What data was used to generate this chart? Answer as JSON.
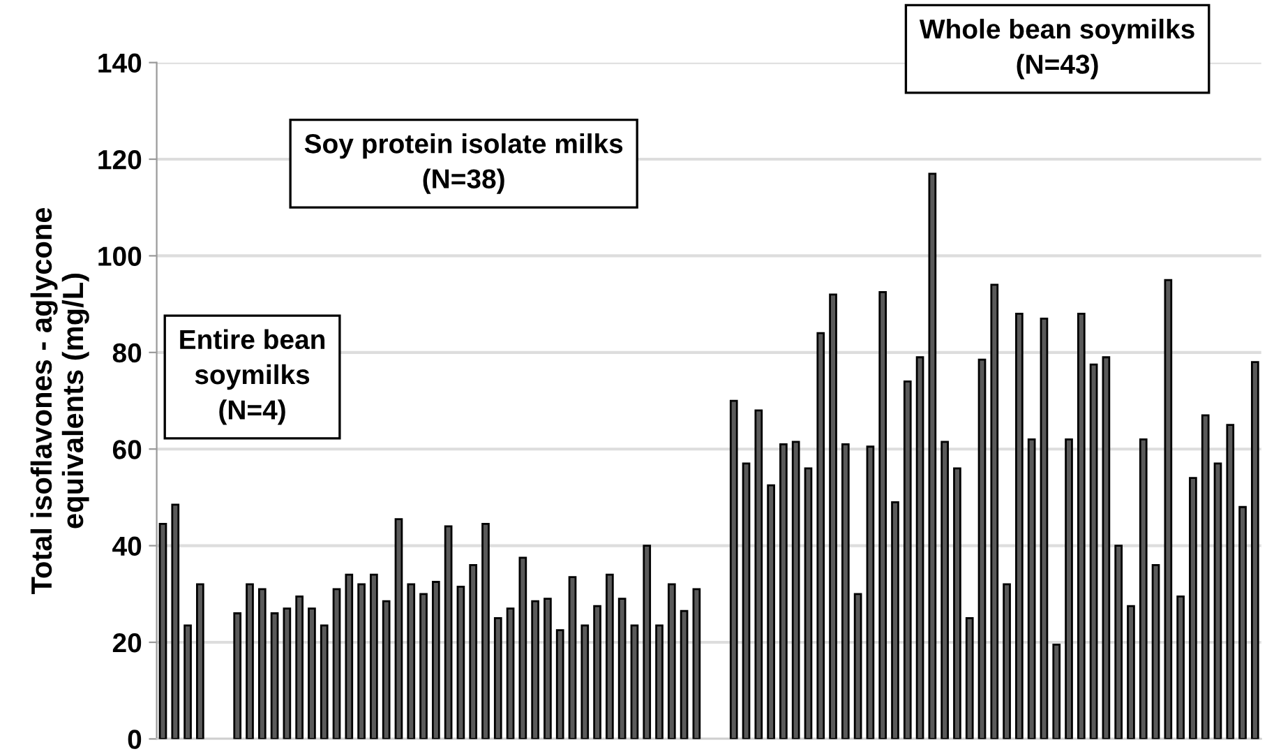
{
  "chart_data": {
    "type": "bar",
    "ylabel": "Total isoflavones - aglycone\nequivalents (mg/L)",
    "categories": [
      null,
      null,
      null,
      null,
      null,
      null,
      null,
      null,
      null,
      null,
      null,
      null,
      null,
      null,
      null,
      null,
      null,
      null,
      null,
      null,
      null,
      null,
      null,
      null,
      null,
      null,
      null,
      null,
      null,
      null,
      null,
      null,
      null,
      null,
      null,
      null,
      null,
      null,
      null,
      null,
      null,
      null,
      null,
      null,
      null,
      null,
      null,
      null,
      null,
      null,
      null,
      null,
      null,
      null,
      null,
      null,
      null,
      null,
      null,
      null,
      null,
      null,
      null,
      null,
      null,
      null,
      null,
      null,
      null,
      null,
      null,
      null,
      null,
      null,
      null,
      null,
      null,
      null,
      null,
      null,
      null,
      null,
      null,
      null,
      null,
      null,
      null,
      null,
      null
    ],
    "values": [
      44.5,
      48.5,
      23.5,
      32,
      null,
      null,
      26,
      32,
      31,
      26,
      27,
      29.5,
      27,
      23.5,
      31,
      34,
      32,
      34,
      28.5,
      45.5,
      32,
      30,
      32.5,
      44,
      31.5,
      36,
      44.5,
      25,
      27,
      37.5,
      28.5,
      29,
      22.5,
      33.5,
      23.5,
      27.5,
      34,
      29,
      23.5,
      40,
      23.5,
      32,
      26.5,
      31,
      null,
      null,
      70,
      57,
      68,
      52.5,
      61,
      61.5,
      56,
      84,
      92,
      61,
      30,
      60.5,
      92.5,
      49,
      74,
      79,
      117,
      61.5,
      56,
      25,
      78.5,
      94,
      32,
      88,
      62,
      87,
      19.5,
      62,
      88,
      77.5,
      79,
      40,
      27.5,
      62,
      36,
      95,
      29.5,
      54,
      67,
      57,
      65,
      48,
      78
    ],
    "color": "#5a5a5a",
    "ylim": [
      0,
      140
    ],
    "yticks": [
      0,
      20,
      40,
      60,
      80,
      100,
      120,
      140
    ],
    "grid": "y",
    "tick_labels": "y",
    "annotations": [
      "Entire bean\nsoymilks\n(N=4)",
      "Soy protein isolate milks\n(N=38)",
      "Whole bean soymilks\n(N=43)"
    ]
  }
}
